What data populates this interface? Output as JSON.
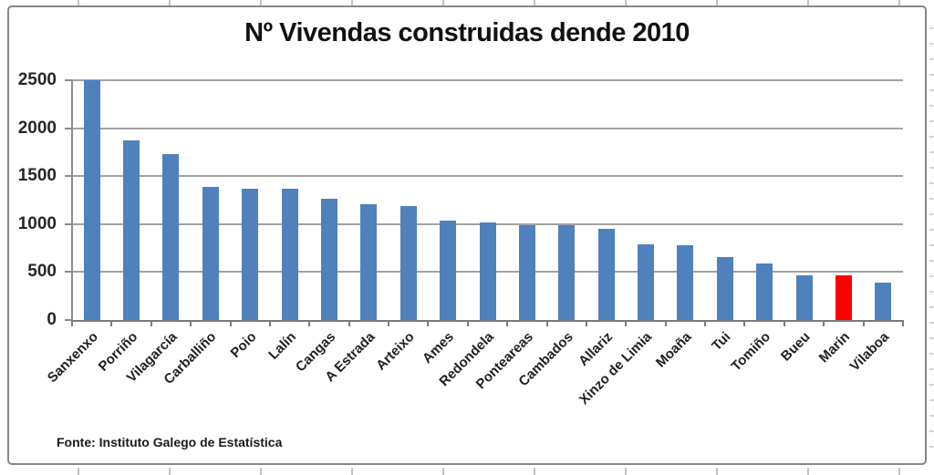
{
  "chart_data": {
    "type": "bar",
    "title": "Nº Vivendas construidas dende 2010",
    "categories": [
      "Sanxenxo",
      "Porriño",
      "Vilagarcía",
      "Carballiño",
      "Poio",
      "Lalín",
      "Cangas",
      "A Estrada",
      "Arteixo",
      "Ames",
      "Redondela",
      "Ponteareas",
      "Cambados",
      "Allariz",
      "Xinzo de Limia",
      "Moaña",
      "Tui",
      "Tomiño",
      "Bueu",
      "Marín",
      "Vilaboa"
    ],
    "values": [
      2500,
      1870,
      1730,
      1390,
      1370,
      1370,
      1265,
      1210,
      1190,
      1035,
      1020,
      985,
      985,
      955,
      790,
      780,
      660,
      590,
      465,
      470,
      390
    ],
    "highlight_category": "Marín",
    "bar_color": "#4f81bd",
    "highlight_color": "#ff0000",
    "ylim": [
      0,
      2500
    ],
    "yticks": [
      0,
      500,
      1000,
      1500,
      2000,
      2500
    ],
    "grid": true,
    "legend": "none",
    "source": "Fonte: Instituto Galego de Estatística"
  }
}
